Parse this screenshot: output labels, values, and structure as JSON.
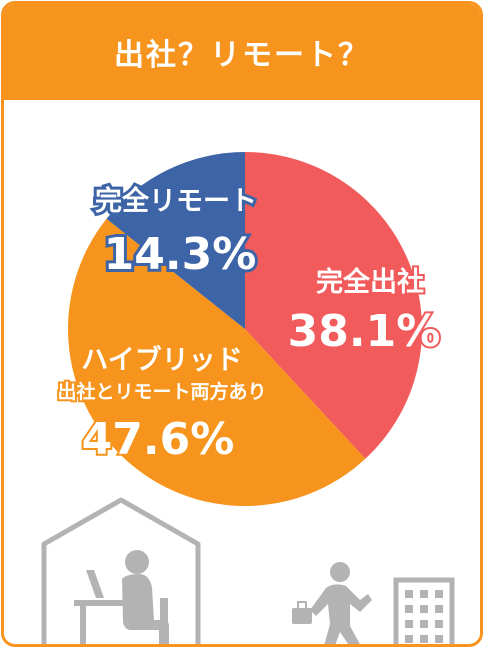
{
  "header": {
    "title": "出社？リモート？"
  },
  "colors": {
    "accent": "#f7941d",
    "office": "#f15b5b",
    "hybrid": "#f7941d",
    "remote": "#3d64a6",
    "icon": "#b3b3b3"
  },
  "chart_data": {
    "type": "pie",
    "slices": [
      {
        "label": "完全出社",
        "value": 38.1,
        "display": "38.1%",
        "color": "#f15b5b"
      },
      {
        "label": "ハイブリッド 出社とリモート両方あり",
        "line1": "ハイブリッド",
        "line2": "出社とリモート両方あり",
        "value": 47.6,
        "display": "47.6%",
        "color": "#f7941d"
      },
      {
        "label": "完全リモート",
        "value": 14.3,
        "display": "14.3%",
        "color": "#3d64a6"
      }
    ]
  },
  "icons": [
    "house-desk-worker-icon",
    "businessman-walking-icon",
    "office-building-icon"
  ]
}
